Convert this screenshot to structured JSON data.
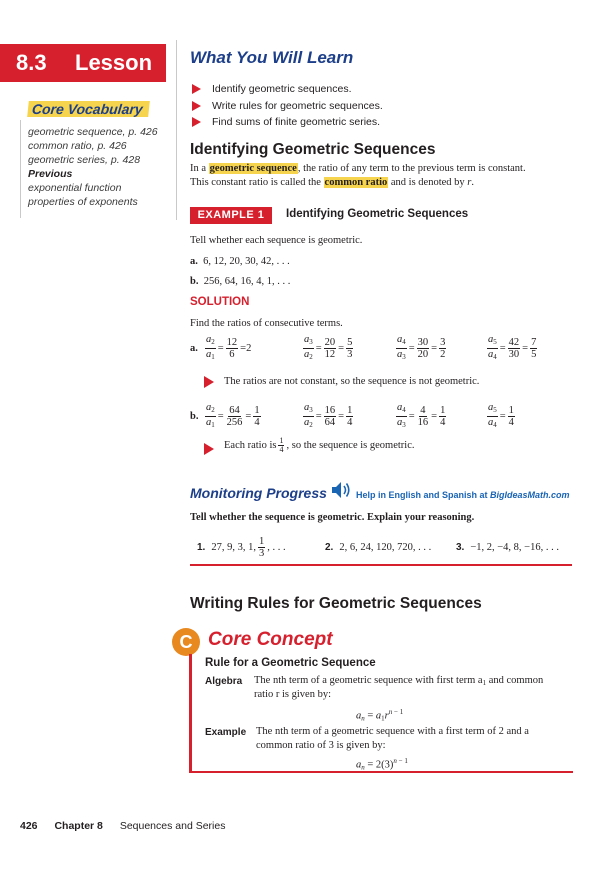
{
  "lesson": {
    "number": "8.3",
    "word": "Lesson"
  },
  "vocab": {
    "title": "Core Vocabulary",
    "items": [
      "geometric sequence, p. 426",
      "common ratio, p. 426",
      "geometric series, p. 428"
    ],
    "previous_label": "Previous",
    "previous_items": [
      "exponential function",
      "properties of exponents"
    ]
  },
  "learn": {
    "title": "What You Will Learn",
    "items": [
      "Identify geometric sequences.",
      "Write rules for geometric sequences.",
      "Find sums of finite geometric series."
    ]
  },
  "section1": {
    "title": "Identifying Geometric Sequences",
    "intro_a": "In a ",
    "term1": "geometric sequence",
    "intro_b": ", the ratio of any term to the previous term is constant.",
    "line2_a": "This constant ratio is called the ",
    "term2": "common ratio",
    "line2_b": " and is denoted by ",
    "line2_var": "r",
    "line2_end": "."
  },
  "example": {
    "tab": "EXAMPLE 1",
    "title": "Identifying Geometric Sequences",
    "prompt": "Tell whether each sequence is geometric.",
    "a_label": "a.",
    "a_seq": "6, 12, 20, 30, 42, . . .",
    "b_label": "b.",
    "b_seq": "256, 64, 16, 4, 1, . . .",
    "solution": "SOLUTION",
    "find": "Find the ratios of consecutive terms.",
    "a_fracs": [
      [
        "12",
        "6",
        "2"
      ],
      [
        "20",
        "12",
        "5/3"
      ],
      [
        "30",
        "20",
        "3/2"
      ],
      [
        "42",
        "30",
        "7/5"
      ]
    ],
    "a_conclusion": "The ratios are not constant, so the sequence is not geometric.",
    "b_fracs": [
      [
        "64",
        "256",
        "1/4"
      ],
      [
        "16",
        "64",
        "1/4"
      ],
      [
        "4",
        "16",
        "1/4"
      ],
      [
        "",
        "",
        "1/4"
      ]
    ],
    "b_conclusion_a": "Each ratio is ",
    "b_conclusion_b": ", so the sequence is geometric."
  },
  "monitoring": {
    "title": "Monitoring Progress",
    "help": "Help in English and Spanish at ",
    "site": "BigIdeasMath.com",
    "instruction": "Tell whether the sequence is geometric. Explain your reasoning.",
    "problems": [
      {
        "num": "1.",
        "text": "27, 9, 3, 1, ",
        "frac_n": "1",
        "frac_d": "3",
        "tail": ", . . ."
      },
      {
        "num": "2.",
        "text": "2, 6, 24, 120, 720, . . ."
      },
      {
        "num": "3.",
        "text": "−1, 2, −4, 8, −16, . . ."
      }
    ]
  },
  "section2": {
    "title": "Writing Rules for Geometric Sequences"
  },
  "core": {
    "title": "Core Concept",
    "rule_title": "Rule for a Geometric Sequence",
    "algebra_label": "Algebra",
    "algebra_text_1": "The nth term of a geometric sequence with first term a",
    "algebra_text_1b": " and common",
    "algebra_text_2": "ratio r is given by:",
    "example_label": "Example",
    "example_text_1": "The nth term of a geometric sequence with a first term of 2 and a",
    "example_text_2": "common ratio of 3 is given by:"
  },
  "footer": {
    "page": "426",
    "chapter": "Chapter 8",
    "name": "Sequences and Series"
  },
  "colors": {
    "accent_red": "#d7202e",
    "blue": "#1d3f8a",
    "highlight": "#f6d44e",
    "link_blue": "#1a64b4"
  }
}
